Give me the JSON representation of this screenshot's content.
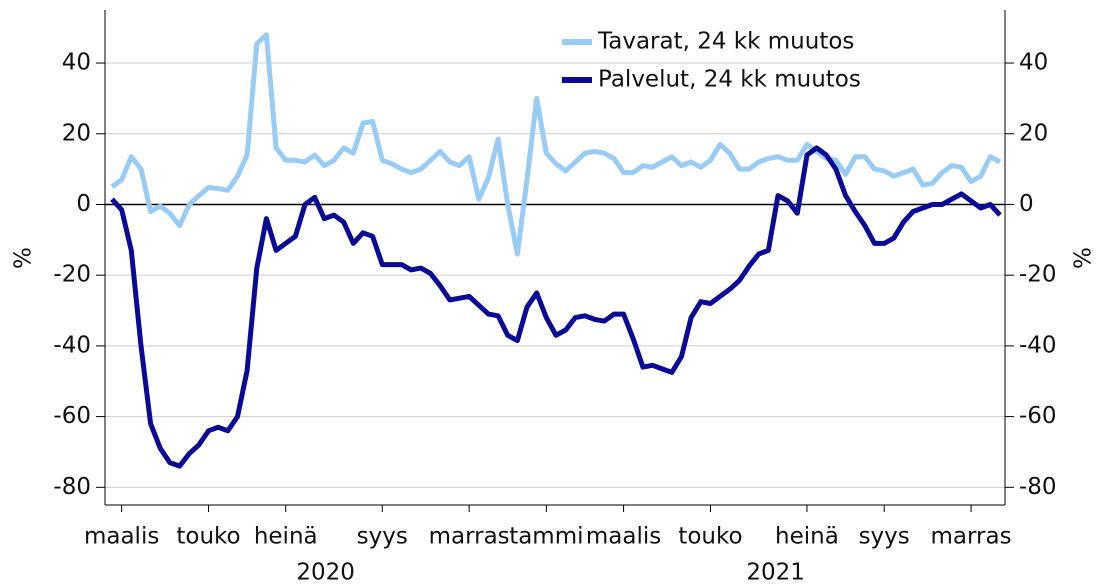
{
  "chart_data": {
    "type": "line",
    "categories": [
      null,
      "maalis",
      null,
      null,
      null,
      null,
      null,
      null,
      null,
      null,
      "touko",
      null,
      null,
      null,
      null,
      null,
      null,
      null,
      "heinä",
      null,
      null,
      null,
      null,
      null,
      null,
      null,
      null,
      null,
      "syys",
      null,
      null,
      null,
      null,
      null,
      null,
      null,
      null,
      "marras",
      null,
      null,
      null,
      null,
      null,
      null,
      null,
      "tammi",
      null,
      null,
      null,
      null,
      null,
      null,
      null,
      "maalis",
      null,
      null,
      null,
      null,
      null,
      null,
      null,
      null,
      "touko",
      null,
      null,
      null,
      null,
      null,
      null,
      null,
      null,
      null,
      "heinä",
      null,
      null,
      null,
      null,
      null,
      null,
      null,
      "syys",
      null,
      null,
      null,
      null,
      null,
      null,
      null,
      null,
      "marras",
      null,
      null,
      null
    ],
    "x_groups": [
      "2020",
      "2021"
    ],
    "series": [
      {
        "name": "Tavarat, 24 kk muutos",
        "color": "#99ccf5",
        "values": [
          5,
          7,
          13.5,
          10,
          -2,
          -0.5,
          -2.5,
          -6,
          0,
          2.5,
          4.8,
          4.5,
          4,
          8,
          14,
          45.5,
          48,
          16,
          12.5,
          12.5,
          12,
          14,
          11,
          12.5,
          16,
          14.5,
          23,
          23.5,
          12.5,
          11.5,
          10,
          9,
          10,
          12.5,
          15,
          12,
          11,
          13.5,
          1.5,
          7.5,
          18.5,
          0,
          -14,
          7,
          30,
          14.5,
          11.5,
          9.5,
          12,
          14.5,
          15,
          14.5,
          13,
          9,
          9,
          11,
          10.5,
          12,
          13.5,
          11,
          12,
          10.5,
          12.5,
          17,
          14.5,
          10,
          10,
          12,
          13,
          13.5,
          12.5,
          12.5,
          17,
          15,
          13,
          12.5,
          8.5,
          13.5,
          13.5,
          10,
          9.5,
          8,
          9,
          10,
          5.5,
          6,
          9,
          11,
          10.5,
          6.5,
          8,
          13.5,
          12
        ]
      },
      {
        "name": "Palvelut, 24 kk muutos",
        "color": "#0a0a96",
        "values": [
          1.5,
          -1.5,
          -13,
          -40,
          -62,
          -69,
          -73,
          -74,
          -70.5,
          -68,
          -64,
          -63,
          -64,
          -60,
          -47,
          -18,
          -4,
          -13,
          -11,
          -9,
          0,
          2,
          -4,
          -3,
          -5,
          -11,
          -8,
          -9,
          -17,
          -17,
          -17,
          -18.5,
          -18,
          -19.5,
          -23,
          -27,
          -26.5,
          -26,
          -28.5,
          -31,
          -31.5,
          -37,
          -38.5,
          -29,
          -25,
          -32,
          -37,
          -35.5,
          -32,
          -31.5,
          -32.5,
          -33,
          -31,
          -31,
          -38,
          -46,
          -45.5,
          -46.5,
          -47.5,
          -43,
          -32,
          -27.5,
          -28,
          -26,
          -24,
          -21.5,
          -17.5,
          -14,
          -13,
          2.5,
          1,
          -2.5,
          14,
          16,
          14,
          10,
          2.5,
          -2,
          -6,
          -11,
          -11,
          -9.5,
          -5,
          -2,
          -1,
          0,
          0,
          1.5,
          3,
          1,
          -1,
          0,
          -3
        ]
      }
    ],
    "ylabel": "%",
    "y2label": "%",
    "ylim": [
      -85,
      55
    ],
    "yticks": [
      -80,
      -60,
      -40,
      -20,
      0,
      20,
      40
    ],
    "y2lim": [
      -85,
      55
    ],
    "y2ticks": [
      -80,
      -60,
      -40,
      -20,
      0,
      20,
      40
    ],
    "grid": true,
    "legend": "top"
  }
}
